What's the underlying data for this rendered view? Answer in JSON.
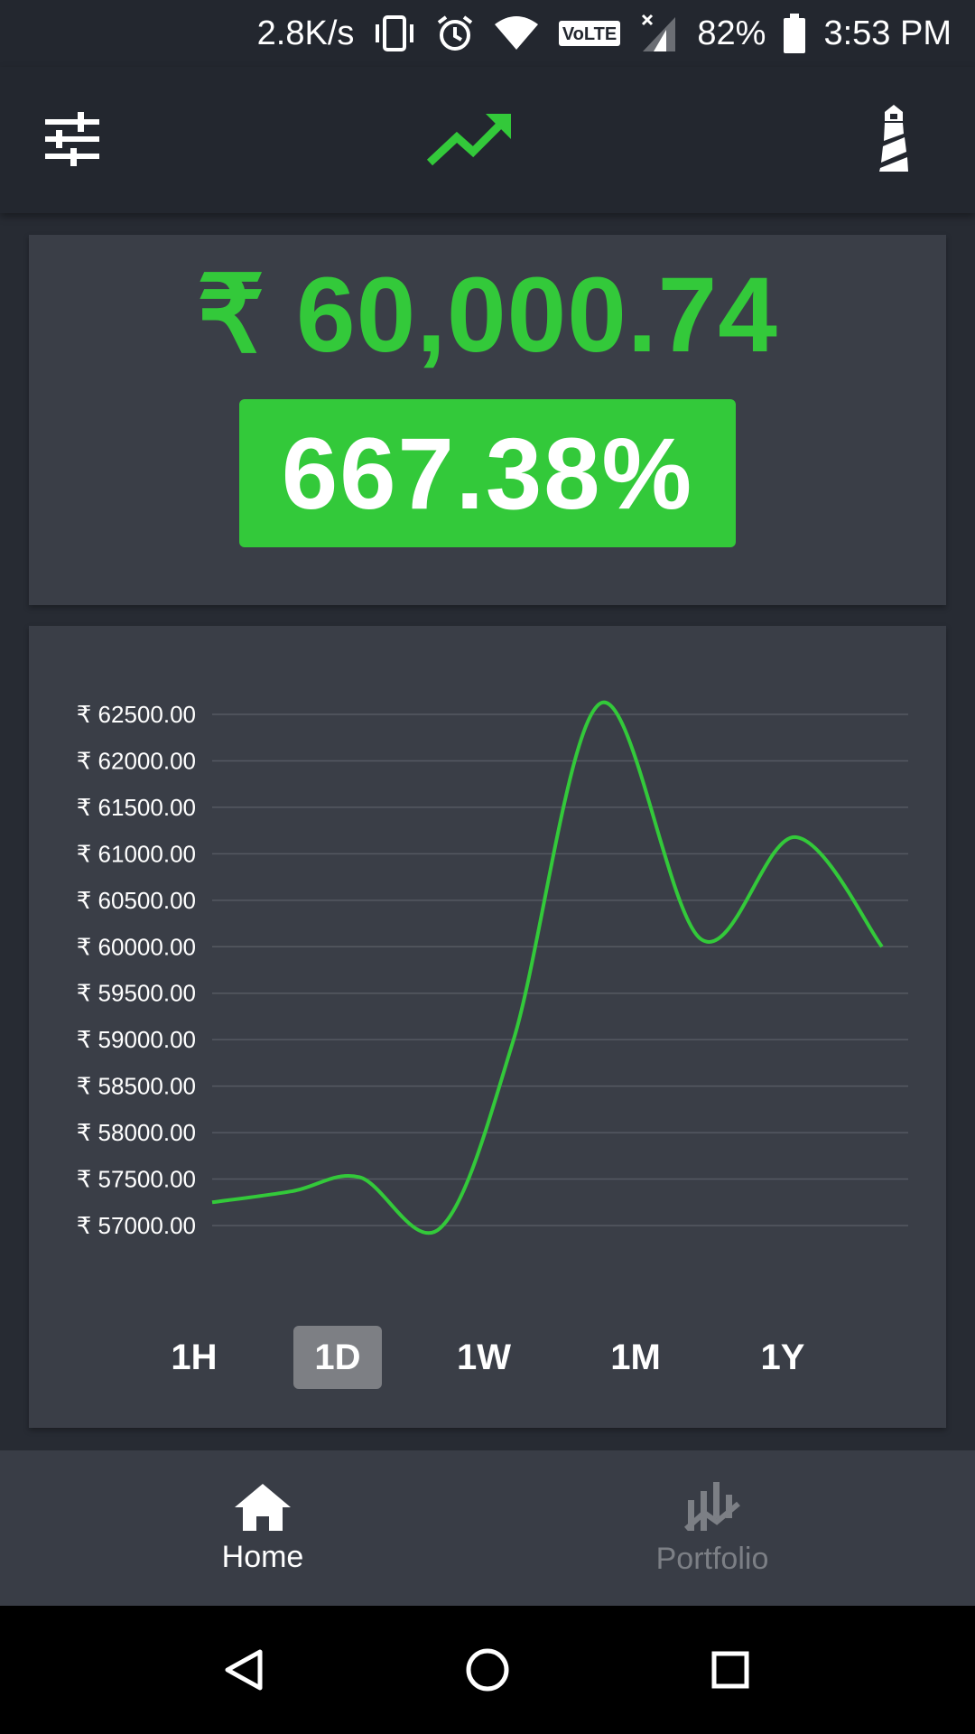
{
  "status_bar": {
    "net_speed": "2.8K/s",
    "volte": "VoLTE",
    "battery": "82%",
    "time": "3:53 PM"
  },
  "app_bar": {
    "left_icon": "tune-icon",
    "center_icon": "trending-up-icon",
    "right_icon": "lighthouse-icon"
  },
  "price": {
    "value": "₹ 60,000.74",
    "change_pct": "667.38%",
    "color": "#33c93a"
  },
  "chart_data": {
    "type": "line",
    "y_ticks": [
      "₹ 62500.00",
      "₹ 62000.00",
      "₹ 61500.00",
      "₹ 61000.00",
      "₹ 60500.00",
      "₹ 60000.00",
      "₹ 59500.00",
      "₹ 59000.00",
      "₹ 58500.00",
      "₹ 58000.00",
      "₹ 57500.00",
      "₹ 57000.00"
    ],
    "ylim": [
      57000,
      62500
    ],
    "grid": true,
    "line_color": "#33c93a",
    "points": [
      {
        "x": 0.0,
        "y": 57250
      },
      {
        "x": 0.12,
        "y": 57370
      },
      {
        "x": 0.22,
        "y": 57520
      },
      {
        "x": 0.34,
        "y": 56970
      },
      {
        "x": 0.45,
        "y": 59000
      },
      {
        "x": 0.58,
        "y": 62620
      },
      {
        "x": 0.73,
        "y": 60080
      },
      {
        "x": 0.87,
        "y": 61180
      },
      {
        "x": 1.0,
        "y": 60000
      }
    ]
  },
  "ranges": {
    "items": [
      "1H",
      "1D",
      "1W",
      "1M",
      "1Y"
    ],
    "selected": "1D"
  },
  "bottom_nav": {
    "home_label": "Home",
    "portfolio_label": "Portfolio"
  }
}
